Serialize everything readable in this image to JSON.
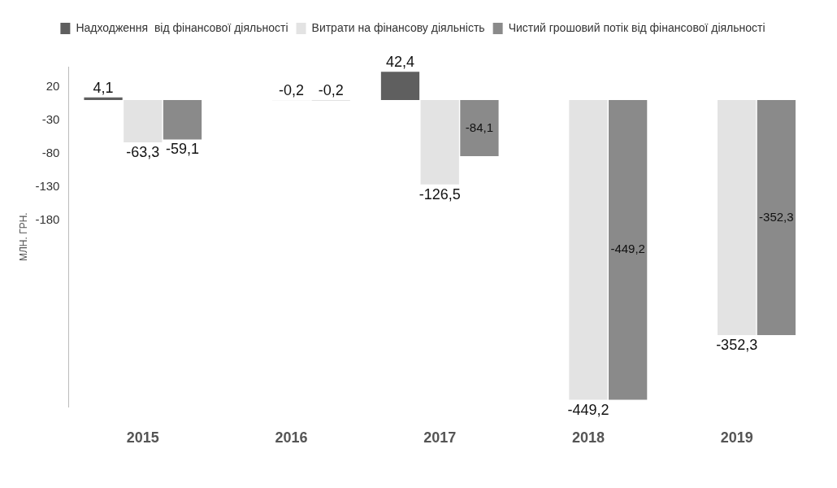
{
  "chart_data": {
    "type": "bar",
    "ylabel": "МЛН. ГРН.",
    "categories": [
      "2015",
      "2016",
      "2017",
      "2018",
      "2019"
    ],
    "series": [
      {
        "name": "Надходження  від фінансової діяльності",
        "color": "#5f5f5f",
        "values": [
          4.1,
          null,
          42.4,
          null,
          null
        ],
        "value_labels": [
          "4,1",
          null,
          "42,4",
          null,
          null
        ]
      },
      {
        "name": "Витрати на фінансову діяльність",
        "color": "#e3e3e3",
        "values": [
          -63.3,
          -0.2,
          -126.5,
          -449.2,
          -352.3
        ],
        "value_labels": [
          "-63,3",
          "-0,2",
          "-126,5",
          "-449,2",
          "-352,3"
        ]
      },
      {
        "name": "Чистий грошовий потік від фінансової діяльності",
        "color": "#8a8a8a",
        "values": [
          -59.1,
          -0.2,
          -84.1,
          -449.2,
          -352.3
        ],
        "value_labels": [
          "-59,1",
          "-0,2",
          "-84,1",
          "-449,2",
          "-352,3"
        ]
      }
    ],
    "ylim": [
      -460,
      50
    ],
    "yticks": [
      20,
      -30,
      -80,
      -130,
      -180
    ],
    "grid": false,
    "legend": "top"
  }
}
